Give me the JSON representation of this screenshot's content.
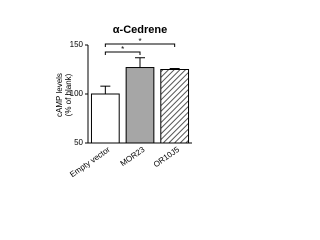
{
  "chart_data": {
    "type": "bar",
    "title": "α-Cedrene",
    "ylabel": [
      "cAMP levels",
      "(% of blank)"
    ],
    "categories": [
      "Empty vector",
      "MOR23",
      "OR10J5"
    ],
    "values": [
      100,
      127,
      125
    ],
    "errors": [
      8,
      10,
      1
    ],
    "fills": [
      "#ffffff",
      "#a6a6a6",
      "hatched"
    ],
    "ylim": [
      50,
      150
    ],
    "yticks": [
      50,
      100,
      150
    ],
    "significance": [
      {
        "from": 0,
        "to": 1,
        "label": "*"
      },
      {
        "from": 0,
        "to": 2,
        "label": "*"
      }
    ]
  }
}
